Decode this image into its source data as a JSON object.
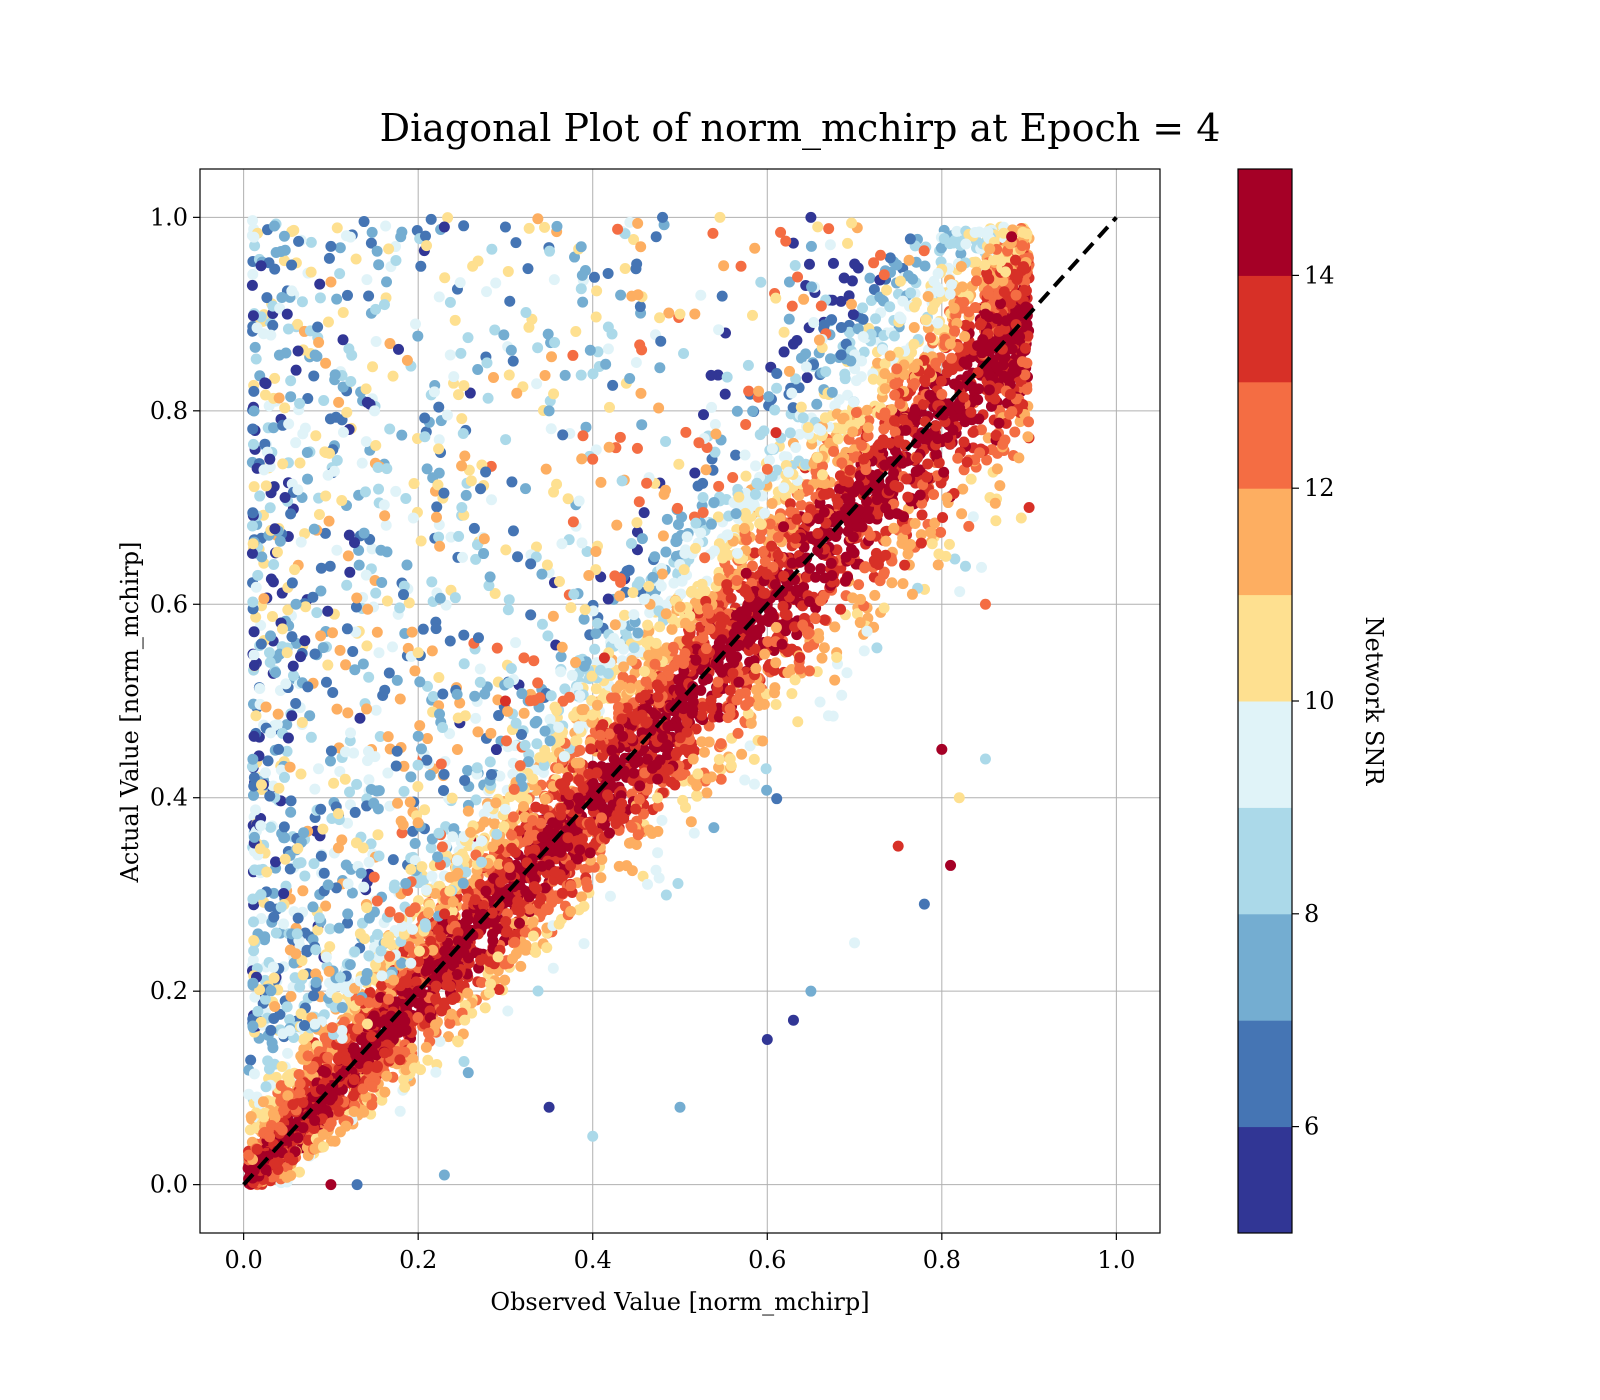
{
  "chart_data": {
    "type": "scatter",
    "title": "Diagonal Plot of norm_mchirp at Epoch = 4",
    "xlabel": "Observed Value [norm_mchirp]",
    "ylabel": "Actual Value [norm_mchirp]",
    "xlim": [
      -0.05,
      1.05
    ],
    "ylim": [
      -0.05,
      1.05
    ],
    "xticks": [
      "0.0",
      "0.2",
      "0.4",
      "0.6",
      "0.8",
      "1.0"
    ],
    "yticks": [
      "0.0",
      "0.2",
      "0.4",
      "0.6",
      "0.8",
      "1.0"
    ],
    "xtick_values": [
      0.0,
      0.2,
      0.4,
      0.6,
      0.8,
      1.0
    ],
    "ytick_values": [
      0.0,
      0.2,
      0.4,
      0.6,
      0.8,
      1.0
    ],
    "grid": true,
    "reference_line": {
      "style": "dashed",
      "color": "#000000",
      "from": [
        0,
        0
      ],
      "to": [
        1,
        1
      ]
    },
    "colorbar": {
      "label": "Network SNR",
      "range": [
        5,
        15
      ],
      "ticks": [
        "6",
        "8",
        "10",
        "12",
        "14"
      ],
      "tick_values": [
        6,
        8,
        10,
        12,
        14
      ],
      "colors": [
        "#313695",
        "#4575b4",
        "#74add1",
        "#abd9e9",
        "#e0f3f8",
        "#fee090",
        "#fdae61",
        "#f46d43",
        "#d73027",
        "#a50026"
      ]
    },
    "points": [
      {
        "x": 0.02,
        "y": 0.95,
        "snr": 5.2
      },
      {
        "x": 0.05,
        "y": 0.9,
        "snr": 5.5
      },
      {
        "x": 0.1,
        "y": 0.97,
        "snr": 6.1
      },
      {
        "x": 0.18,
        "y": 0.98,
        "snr": 7.5
      },
      {
        "x": 0.23,
        "y": 0.99,
        "snr": 5.4
      },
      {
        "x": 0.3,
        "y": 0.99,
        "snr": 6.8
      },
      {
        "x": 0.48,
        "y": 1.0,
        "snr": 6.0
      },
      {
        "x": 0.65,
        "y": 1.0,
        "snr": 5.8
      },
      {
        "x": 0.03,
        "y": 0.75,
        "snr": 5.3
      },
      {
        "x": 0.06,
        "y": 0.6,
        "snr": 7.2
      },
      {
        "x": 0.04,
        "y": 0.45,
        "snr": 6.3
      },
      {
        "x": 0.02,
        "y": 0.3,
        "snr": 8.5
      },
      {
        "x": 0.12,
        "y": 0.65,
        "snr": 11.2
      },
      {
        "x": 0.15,
        "y": 0.8,
        "snr": 9.5
      },
      {
        "x": 0.2,
        "y": 0.55,
        "snr": 10.6
      },
      {
        "x": 0.25,
        "y": 0.7,
        "snr": 8.8
      },
      {
        "x": 0.3,
        "y": 0.5,
        "snr": 13.5
      },
      {
        "x": 0.35,
        "y": 0.8,
        "snr": 7.8
      },
      {
        "x": 0.4,
        "y": 0.75,
        "snr": 12.4
      },
      {
        "x": 0.45,
        "y": 0.85,
        "snr": 9.2
      },
      {
        "x": 0.5,
        "y": 0.9,
        "snr": 10.2
      },
      {
        "x": 0.55,
        "y": 0.95,
        "snr": 11.8
      },
      {
        "x": 0.1,
        "y": 0.1,
        "snr": 14.5
      },
      {
        "x": 0.2,
        "y": 0.2,
        "snr": 14.8
      },
      {
        "x": 0.3,
        "y": 0.3,
        "snr": 14.6
      },
      {
        "x": 0.4,
        "y": 0.4,
        "snr": 14.9
      },
      {
        "x": 0.5,
        "y": 0.5,
        "snr": 14.7
      },
      {
        "x": 0.6,
        "y": 0.6,
        "snr": 14.5
      },
      {
        "x": 0.7,
        "y": 0.7,
        "snr": 14.9
      },
      {
        "x": 0.8,
        "y": 0.8,
        "snr": 14.6
      },
      {
        "x": 0.85,
        "y": 0.9,
        "snr": 14.8
      },
      {
        "x": 0.88,
        "y": 0.98,
        "snr": 14.7
      },
      {
        "x": 0.9,
        "y": 0.7,
        "snr": 13.3
      },
      {
        "x": 0.85,
        "y": 0.6,
        "snr": 12.5
      },
      {
        "x": 0.8,
        "y": 0.45,
        "snr": 14.2
      },
      {
        "x": 0.75,
        "y": 0.35,
        "snr": 13.8
      },
      {
        "x": 0.7,
        "y": 0.25,
        "snr": 9.4
      },
      {
        "x": 0.65,
        "y": 0.2,
        "snr": 7.1
      },
      {
        "x": 0.6,
        "y": 0.15,
        "snr": 5.6
      },
      {
        "x": 0.5,
        "y": 0.08,
        "snr": 7.6
      },
      {
        "x": 0.4,
        "y": 0.05,
        "snr": 8.6
      },
      {
        "x": 0.35,
        "y": 0.08,
        "snr": 5.5
      },
      {
        "x": 0.23,
        "y": 0.01,
        "snr": 7.9
      },
      {
        "x": 0.1,
        "y": 0.0,
        "snr": 14.9
      },
      {
        "x": 0.13,
        "y": 0.0,
        "snr": 6.2
      },
      {
        "x": 0.63,
        "y": 0.17,
        "snr": 5.4
      },
      {
        "x": 0.78,
        "y": 0.29,
        "snr": 6.4
      },
      {
        "x": 0.82,
        "y": 0.4,
        "snr": 10.8
      },
      {
        "x": 0.85,
        "y": 0.44,
        "snr": 8.4
      },
      {
        "x": 0.81,
        "y": 0.33,
        "snr": 14.6
      }
    ]
  }
}
